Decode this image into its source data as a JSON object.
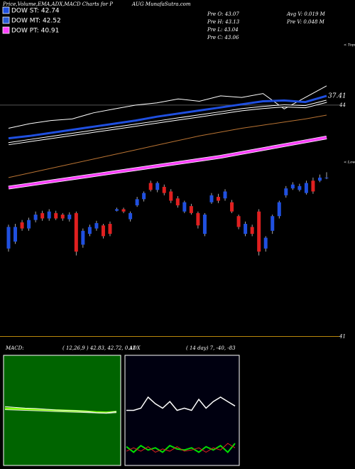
{
  "header": {
    "title_left": "Price,Volume,EMA,ADX,MACD Charts for P",
    "title_right": "AUG MunafaSutra.com"
  },
  "legend": [
    {
      "label": "DOW ST: 42.74",
      "color": "#1f4fe0"
    },
    {
      "label": "DOW MT: 42.52",
      "color": "#2a5bd6"
    },
    {
      "label": "DOW PT: 40.91",
      "color": "#ff40ff"
    }
  ],
  "stats": [
    "Pre  O: 43.07",
    "Pre  H: 43.13",
    "Pre  L: 43.04",
    "Pre  C: 43.06",
    "Avg  V: 0.019 M",
    "Pre  V: 0.048 M"
  ],
  "chart_data": [
    {
      "type": "candlestick",
      "up_color": "#2050e0",
      "down_color": "#e02020",
      "ylim": [
        40.94,
        44.81
      ],
      "yticks": [
        41,
        44
      ],
      "annotations": [
        "< Tops",
        "< Lows"
      ],
      "categories": [
        null,
        null,
        null,
        null,
        null,
        null,
        null,
        null,
        null,
        null,
        null,
        null,
        null,
        null,
        null,
        null,
        null,
        null,
        null,
        null,
        null,
        null,
        null,
        null,
        null,
        null,
        null,
        null,
        null,
        null,
        null,
        null,
        null,
        null,
        null,
        null,
        null,
        null,
        null,
        null,
        null,
        null,
        null,
        null,
        null,
        null,
        null,
        null
      ],
      "open": [
        42.14,
        42.23,
        42.48,
        42.4,
        42.51,
        42.6,
        42.53,
        42.6,
        42.58,
        42.52,
        42.6,
        42.19,
        42.33,
        42.4,
        42.44,
        42.46,
        42.63,
        42.65,
        42.52,
        42.7,
        42.78,
        42.99,
        42.9,
        42.94,
        42.88,
        42.79,
        42.62,
        42.69,
        42.6,
        42.33,
        42.74,
        42.81,
        42.79,
        42.74,
        42.56,
        42.33,
        42.42,
        42.62,
        42.14,
        42.37,
        42.56,
        42.83,
        42.92,
        42.9,
        42.86,
        43.02,
        43.02,
        43.06
      ],
      "high": [
        42.45,
        42.46,
        42.51,
        42.54,
        42.62,
        42.63,
        42.65,
        42.63,
        42.6,
        42.61,
        42.62,
        42.4,
        42.45,
        42.5,
        42.46,
        42.49,
        42.67,
        42.67,
        42.62,
        42.81,
        42.88,
        43.02,
        43.01,
        42.97,
        42.91,
        42.82,
        42.76,
        42.72,
        42.62,
        42.6,
        42.86,
        42.85,
        42.91,
        42.77,
        42.58,
        42.49,
        42.45,
        42.65,
        42.3,
        42.58,
        42.76,
        42.95,
        43.0,
        42.98,
        43.02,
        43.06,
        43.1,
        43.13
      ],
      "low": [
        42.1,
        42.2,
        42.37,
        42.37,
        42.48,
        42.5,
        42.5,
        42.51,
        42.5,
        42.49,
        42.05,
        42.15,
        42.3,
        42.37,
        42.27,
        42.3,
        42.62,
        42.6,
        42.49,
        42.68,
        42.75,
        42.88,
        42.87,
        42.83,
        42.73,
        42.67,
        42.6,
        42.58,
        42.4,
        42.3,
        42.72,
        42.73,
        42.76,
        42.6,
        42.39,
        42.3,
        42.3,
        42.05,
        42.1,
        42.33,
        42.53,
        42.8,
        42.9,
        42.88,
        42.84,
        42.85,
        43.0,
        43.04
      ],
      "close": [
        42.42,
        42.42,
        42.4,
        42.51,
        42.58,
        42.53,
        42.62,
        42.53,
        42.53,
        42.58,
        42.1,
        42.37,
        42.42,
        42.47,
        42.3,
        42.33,
        42.65,
        42.62,
        42.6,
        42.78,
        42.86,
        42.9,
        42.99,
        42.86,
        42.76,
        42.7,
        42.74,
        42.6,
        42.44,
        42.58,
        42.83,
        42.76,
        42.88,
        42.62,
        42.42,
        42.46,
        42.33,
        42.1,
        42.28,
        42.56,
        42.74,
        42.92,
        42.97,
        42.95,
        42.99,
        42.88,
        43.06,
        43.06
      ]
    },
    {
      "type": "line",
      "ylim": [
        40.94,
        44.81
      ],
      "annotations": [
        "37.41"
      ],
      "categories": [
        null,
        null,
        null,
        null,
        null,
        null,
        null,
        null,
        null,
        null,
        null,
        null,
        null,
        null,
        null,
        null
      ],
      "series": [
        {
          "color": "#ffffff",
          "values": [
            43.7,
            43.76,
            43.8,
            43.82,
            43.9,
            43.95,
            44.0,
            44.03,
            44.08,
            44.05,
            44.12,
            44.1,
            44.15,
            43.95,
            44.1,
            44.25
          ]
        },
        {
          "color": "#b87333",
          "values": [
            43.06,
            43.12,
            43.18,
            43.24,
            43.3,
            43.36,
            43.42,
            43.48,
            43.54,
            43.6,
            43.65,
            43.7,
            43.74,
            43.78,
            43.82,
            43.87
          ]
        },
        {
          "color": "#ffffff",
          "values": [
            43.5,
            43.54,
            43.58,
            43.62,
            43.66,
            43.7,
            43.74,
            43.78,
            43.82,
            43.86,
            43.9,
            43.94,
            43.97,
            43.99,
            43.98,
            44.05
          ]
        },
        {
          "color": "#1f4fe0",
          "values": [
            43.57,
            43.6,
            43.64,
            43.68,
            43.72,
            43.76,
            43.8,
            43.85,
            43.89,
            43.93,
            43.97,
            44.01,
            44.05,
            44.06,
            44.04,
            44.12
          ]
        },
        {
          "color": "#ff40ff",
          "values": [
            42.93,
            42.97,
            43.01,
            43.05,
            43.09,
            43.13,
            43.17,
            43.21,
            43.25,
            43.29,
            43.33,
            43.38,
            43.43,
            43.48,
            43.53,
            43.58
          ]
        }
      ]
    },
    {
      "type": "macd",
      "title": "MACD:",
      "subtitle": "( 12,26,9 ) 42.83, 42.72, 0.11",
      "fill": "#006400",
      "ylim": [
        41.5,
        44.5
      ],
      "categories": [
        null,
        null,
        null,
        null,
        null,
        null,
        null,
        null,
        null,
        null,
        null,
        null
      ],
      "series": [
        {
          "color": "#7cfc00",
          "values": [
            43.05,
            43.04,
            43.03,
            43.02,
            43.01,
            43.0,
            42.99,
            42.98,
            42.97,
            42.95,
            42.94,
            42.96
          ]
        },
        {
          "color": "#ffffff",
          "values": [
            43.1,
            43.08,
            43.06,
            43.05,
            43.03,
            43.01,
            43.0,
            42.99,
            42.97,
            42.94,
            42.93,
            42.97
          ]
        },
        {
          "color": "#dddddd",
          "values": [
            43.02,
            43.01,
            43.0,
            42.99,
            42.98,
            42.97,
            42.96,
            42.95,
            42.94,
            42.93,
            42.92,
            42.94
          ]
        }
      ]
    },
    {
      "type": "adx",
      "title": "ADX",
      "subtitle": "( 14 day) 7, -40, -83",
      "fill": "#000010",
      "ylim": [
        0,
        100
      ],
      "categories": [
        null,
        null,
        null,
        null,
        null,
        null,
        null,
        null,
        null,
        null,
        null,
        null,
        null,
        null,
        null,
        null
      ],
      "series": [
        {
          "color": "#ffffff",
          "values": [
            50,
            50,
            52,
            62,
            56,
            52,
            58,
            50,
            52,
            50,
            60,
            52,
            58,
            62,
            58,
            54
          ]
        },
        {
          "color": "#00e000",
          "values": [
            17,
            12,
            18,
            14,
            16,
            12,
            18,
            15,
            14,
            16,
            12,
            17,
            14,
            18,
            12,
            20
          ]
        },
        {
          "color": "#e02020",
          "values": [
            13,
            16,
            13,
            17,
            12,
            15,
            13,
            17,
            13,
            14,
            16,
            12,
            16,
            14,
            20,
            16
          ]
        }
      ]
    }
  ]
}
